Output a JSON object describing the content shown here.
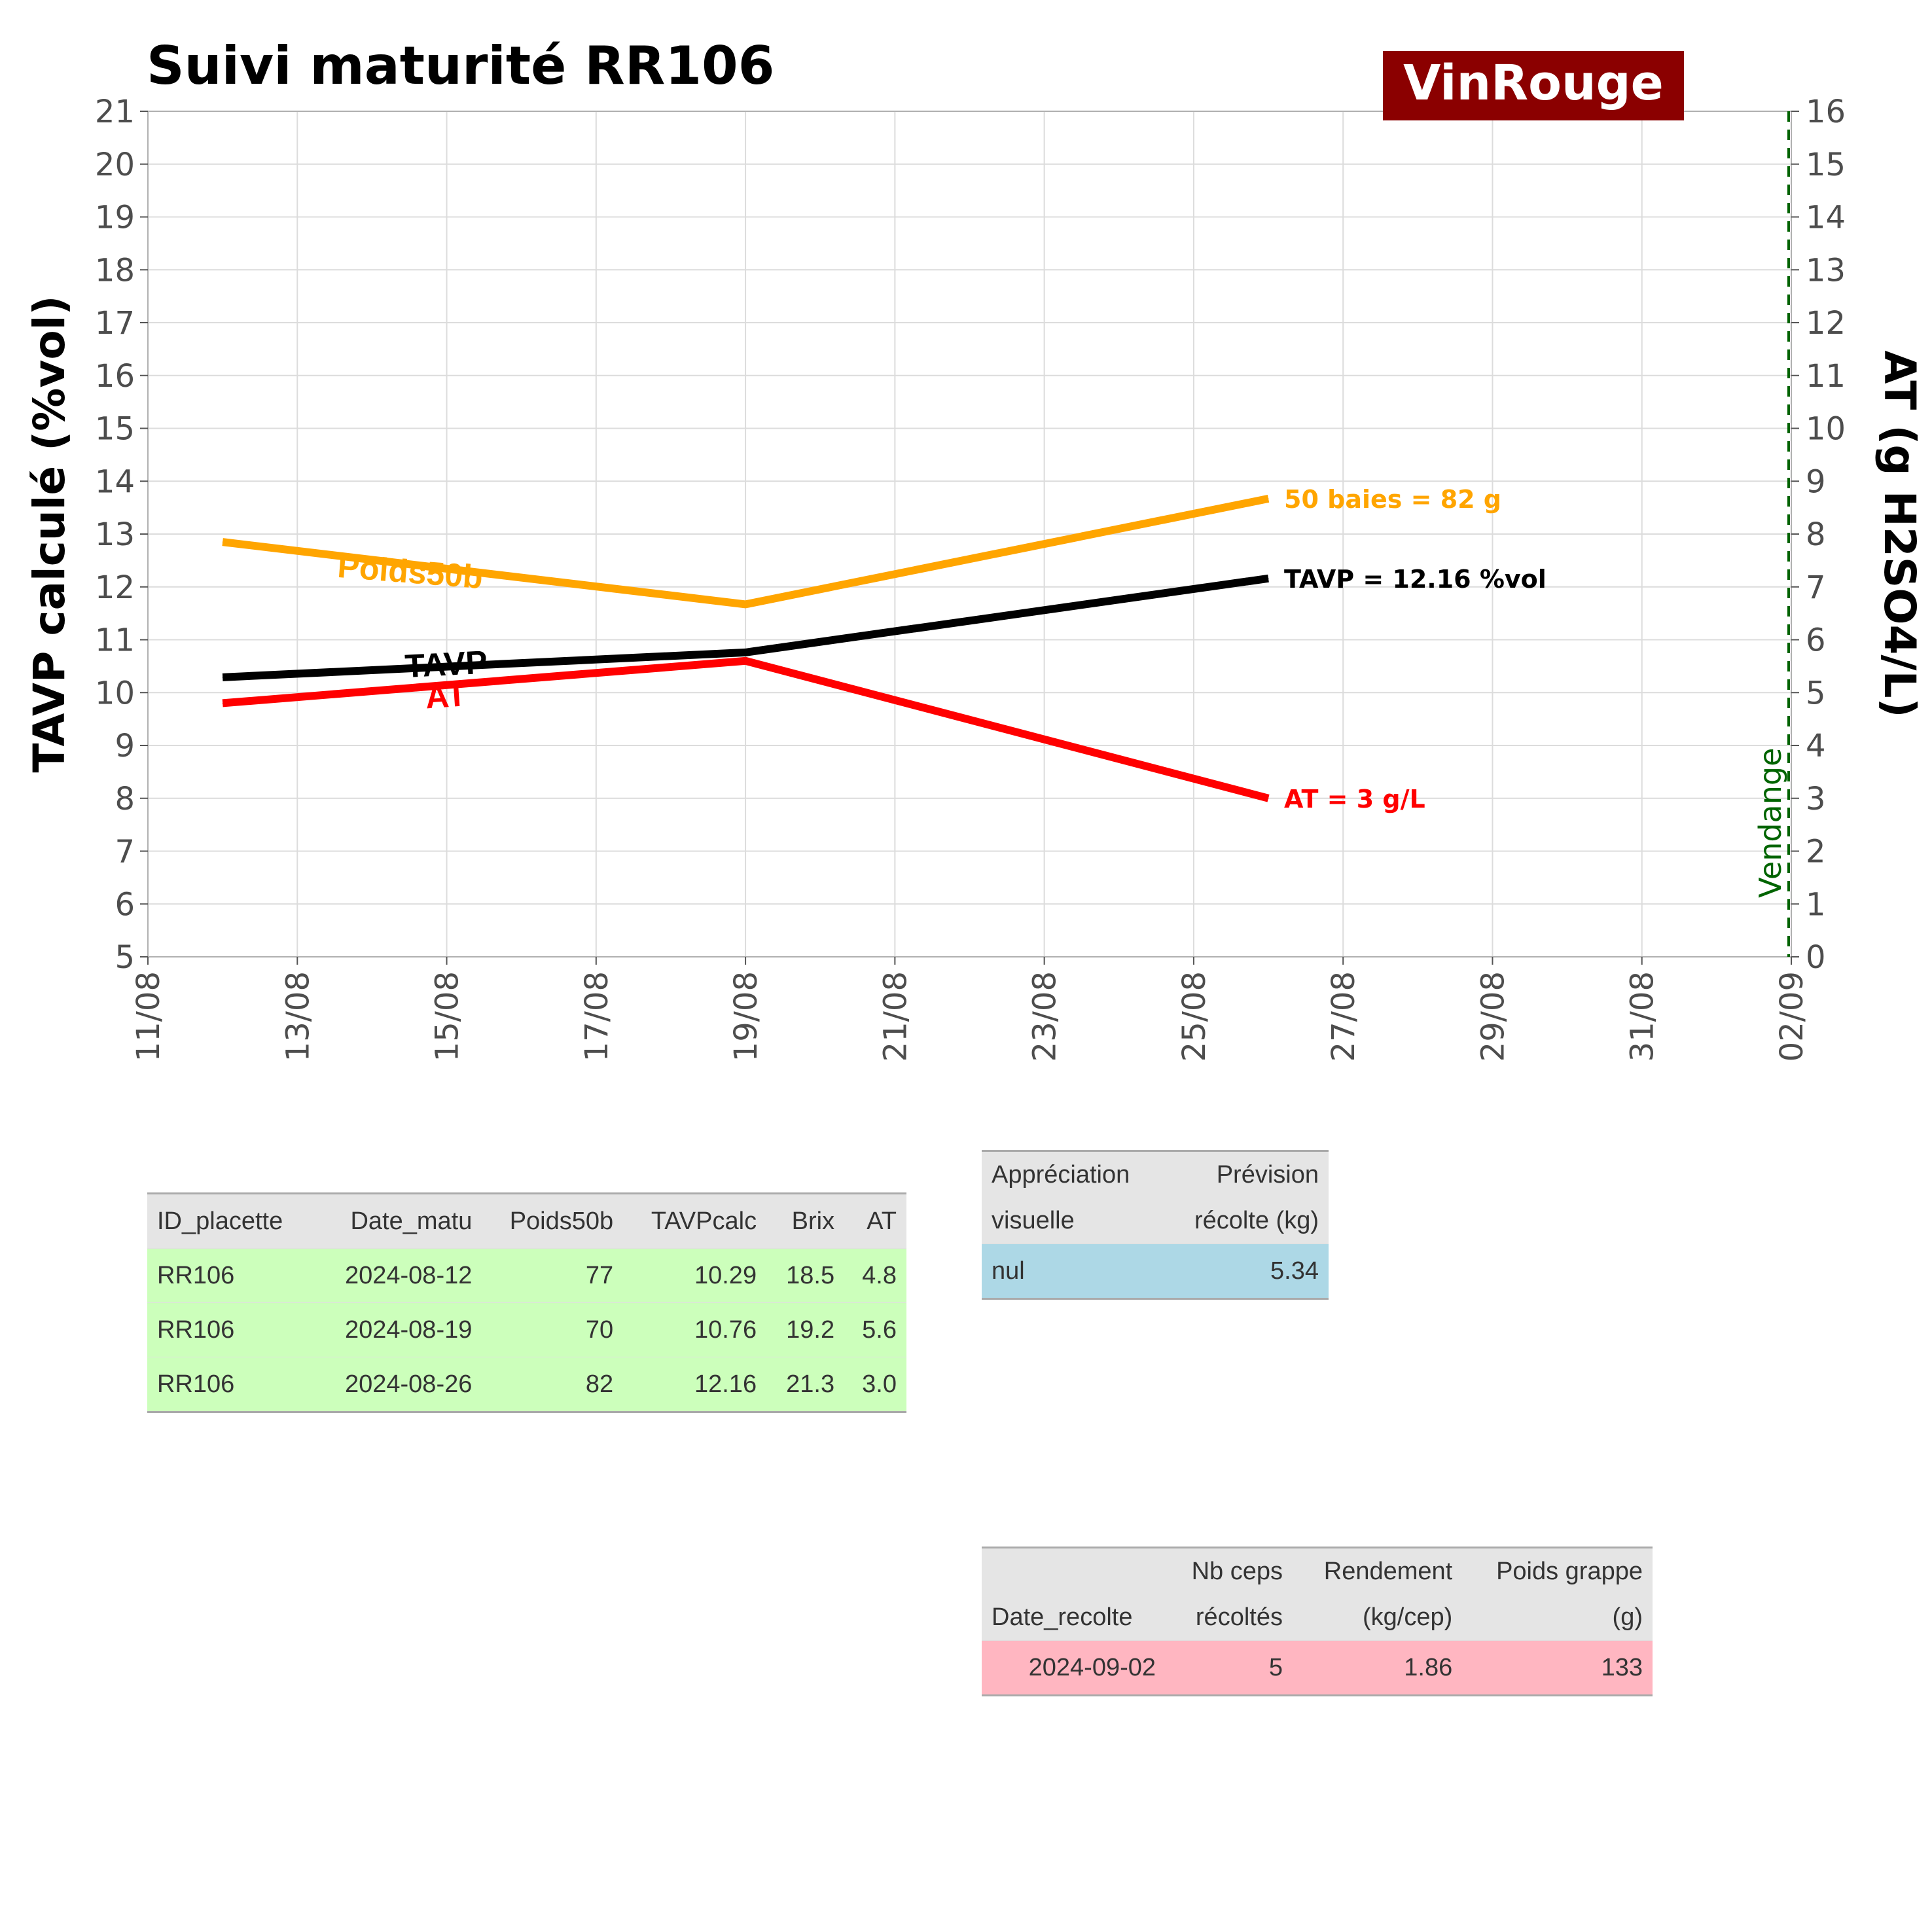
{
  "chart_data": {
    "type": "line",
    "title": "Suivi maturité  RR106",
    "brand": "VinRouge",
    "brand_color": "#8b0000",
    "ylabel": "TAVP calculé (%vol)",
    "y2label": "AT (g H2SO4/L)",
    "ylim": [
      5,
      21
    ],
    "y2lim": [
      0,
      16
    ],
    "y_ticks": [
      "5",
      "6",
      "7",
      "8",
      "9",
      "10",
      "11",
      "12",
      "13",
      "14",
      "15",
      "16",
      "17",
      "18",
      "19",
      "20",
      "21"
    ],
    "y2_ticks": [
      "0",
      "1",
      "2",
      "3",
      "4",
      "5",
      "6",
      "7",
      "8",
      "9",
      "10",
      "11",
      "12",
      "13",
      "14",
      "15",
      "16"
    ],
    "x_ticks": [
      "11/08",
      "13/08",
      "15/08",
      "17/08",
      "19/08",
      "21/08",
      "23/08",
      "25/08",
      "27/08",
      "29/08",
      "31/08",
      "02/09"
    ],
    "xlim": [
      "2024-08-11",
      "2024-09-02"
    ],
    "grid": true,
    "x": [
      "2024-08-12",
      "2024-08-19",
      "2024-08-26"
    ],
    "series": [
      {
        "name": "Poids50b",
        "axis": "left",
        "color": "#ffa500",
        "values": [
          12.85,
          11.67,
          13.67
        ],
        "end_label": "50 baies = 82 g",
        "label_date": "2024-08-14.5",
        "label_value": 12.3
      },
      {
        "name": "TAVP",
        "axis": "left",
        "color": "#000000",
        "values": [
          10.29,
          10.76,
          12.16
        ],
        "end_label": "TAVP = 12.16 %vol",
        "label_date": "2024-08-15",
        "label_value": 10.55
      },
      {
        "name": "AT",
        "axis": "right",
        "color": "#ff0000",
        "values": [
          4.8,
          5.6,
          3.0
        ],
        "end_label": "AT = 3 g/L",
        "label_date": "2024-08-15",
        "label_value": 4.95
      }
    ],
    "vline": {
      "date": "2024-09-02",
      "label": "Vendange",
      "color": "#006400"
    }
  },
  "tables": {
    "matu": {
      "headers": [
        "ID_placette",
        "Date_matu",
        "Poids50b",
        "TAVPcalc",
        "Brix",
        "AT"
      ],
      "rows": [
        [
          "RR106",
          "2024-08-12",
          "77",
          "10.29",
          "18.5",
          "4.8"
        ],
        [
          "RR106",
          "2024-08-19",
          "70",
          "10.76",
          "19.2",
          "5.6"
        ],
        [
          "RR106",
          "2024-08-26",
          "82",
          "12.16",
          "21.3",
          "3.0"
        ]
      ]
    },
    "prevision": {
      "header1": [
        "Appréciation",
        "Prévision"
      ],
      "header2": [
        "visuelle",
        "récolte (kg)"
      ],
      "rows": [
        [
          "nul",
          "5.34"
        ]
      ]
    },
    "recolte": {
      "header1": [
        "",
        "Nb ceps",
        "Rendement",
        "Poids grappe"
      ],
      "header2": [
        "Date_recolte",
        "récoltés",
        "(kg/cep)",
        "(g)"
      ],
      "rows": [
        [
          "2024-09-02",
          "5",
          "1.86",
          "133"
        ]
      ]
    }
  }
}
